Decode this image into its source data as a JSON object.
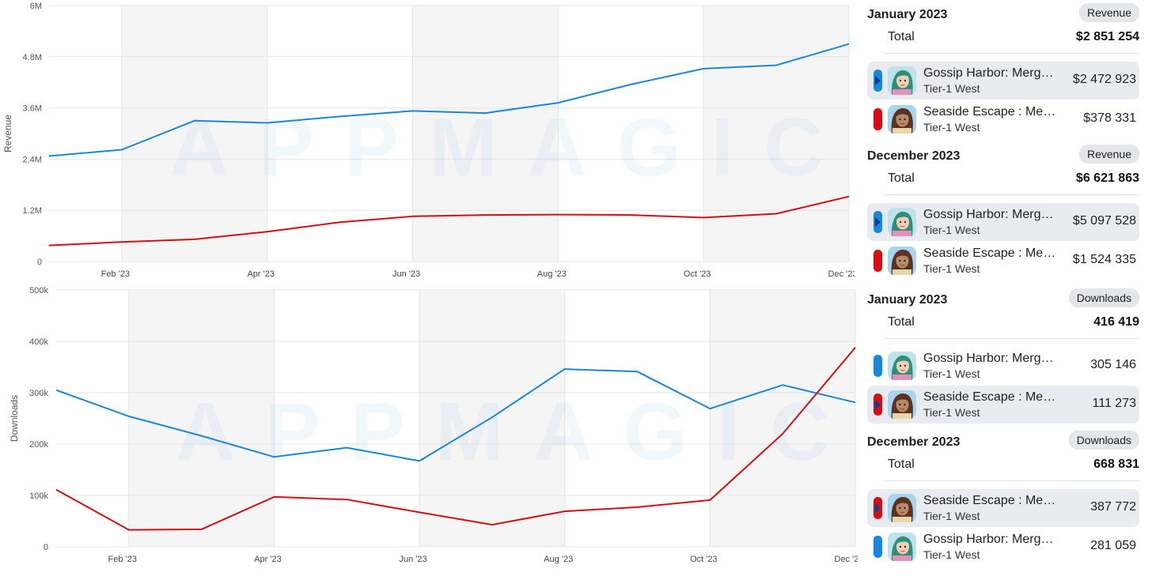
{
  "colors": {
    "gossip": "#1a86d9",
    "seaside": "#d40f14",
    "grid": "#e5e5e5",
    "shade": "#f5f5f5"
  },
  "watermark": "APPMAGIC",
  "chart_data": [
    {
      "type": "line",
      "ylabel": "Revenue",
      "yticks": [
        "0",
        "1.2M",
        "2.4M",
        "3.6M",
        "4.8M",
        "6M"
      ],
      "ylim": [
        0,
        6000000
      ],
      "xtick_labels": [
        "Feb '23",
        "Apr '23",
        "Jun '23",
        "Aug '23",
        "Oct '23",
        "Dec '23"
      ],
      "x": [
        "Jan '23",
        "Feb '23",
        "Mar '23",
        "Apr '23",
        "May '23",
        "Jun '23",
        "Jul '23",
        "Aug '23",
        "Sep '23",
        "Oct '23",
        "Nov '23",
        "Dec '23"
      ],
      "grid": true,
      "series": [
        {
          "name": "Gossip Harbor: Merg…",
          "color": "#1a86d9",
          "values": [
            2472923,
            2620000,
            3300000,
            3250000,
            3400000,
            3530000,
            3480000,
            3720000,
            4150000,
            4520000,
            4600000,
            5097528
          ]
        },
        {
          "name": "Seaside Escape : Mer…",
          "color": "#d40f14",
          "values": [
            378331,
            460000,
            520000,
            700000,
            920000,
            1060000,
            1090000,
            1100000,
            1090000,
            1030000,
            1120000,
            1524335
          ]
        }
      ]
    },
    {
      "type": "line",
      "ylabel": "Downloads",
      "yticks": [
        "0",
        "100k",
        "200k",
        "300k",
        "400k",
        "500k"
      ],
      "ylim": [
        0,
        500000
      ],
      "xtick_labels": [
        "Feb '23",
        "Apr '23",
        "Jun '23",
        "Aug '23",
        "Oct '23",
        "Dec '23"
      ],
      "x": [
        "Jan '23",
        "Feb '23",
        "Mar '23",
        "Apr '23",
        "May '23",
        "Jun '23",
        "Jul '23",
        "Aug '23",
        "Sep '23",
        "Oct '23",
        "Nov '23",
        "Dec '23"
      ],
      "grid": true,
      "series": [
        {
          "name": "Gossip Harbor: Merg…",
          "color": "#1a86d9",
          "values": [
            305146,
            254000,
            216000,
            175000,
            193000,
            167000,
            252000,
            346000,
            341000,
            269000,
            315000,
            281059
          ]
        },
        {
          "name": "Seaside Escape : Mer…",
          "color": "#d40f14",
          "values": [
            111273,
            33000,
            34000,
            97000,
            92000,
            67000,
            43000,
            69000,
            77000,
            91000,
            220000,
            387772
          ]
        }
      ]
    }
  ],
  "panels": [
    {
      "header": "January 2023",
      "metric": "Revenue",
      "total_label": "Total",
      "total": "$2 851 254",
      "rows": [
        {
          "name": "Gossip Harbor: Merge & Story",
          "region": "Tier-1 West",
          "value": "$2 472 923",
          "color": "#1a86d9",
          "icon": "gossip",
          "selected": true
        },
        {
          "name": "Seaside Escape : Merge & Story",
          "region": "Tier-1 West",
          "value": "$378 331",
          "color": "#d40f14",
          "icon": "seaside",
          "selected": false
        }
      ]
    },
    {
      "header": "December 2023",
      "metric": "Revenue",
      "total_label": "Total",
      "total": "$6 621 863",
      "rows": [
        {
          "name": "Gossip Harbor: Merge & Story",
          "region": "Tier-1 West",
          "value": "$5 097 528",
          "color": "#1a86d9",
          "icon": "gossip",
          "selected": true
        },
        {
          "name": "Seaside Escape : Merge & Story",
          "region": "Tier-1 West",
          "value": "$1 524 335",
          "color": "#d40f14",
          "icon": "seaside",
          "selected": false
        }
      ]
    },
    {
      "header": "January 2023",
      "metric": "Downloads",
      "total_label": "Total",
      "total": "416 419",
      "rows": [
        {
          "name": "Gossip Harbor: Merge & Story",
          "region": "Tier-1 West",
          "value": "305 146",
          "color": "#1a86d9",
          "icon": "gossip",
          "selected": false
        },
        {
          "name": "Seaside Escape : Merge & Story",
          "region": "Tier-1 West",
          "value": "111 273",
          "color": "#d40f14",
          "icon": "seaside",
          "selected": true
        }
      ]
    },
    {
      "header": "December 2023",
      "metric": "Downloads",
      "total_label": "Total",
      "total": "668 831",
      "rows": [
        {
          "name": "Seaside Escape : Merge & Story",
          "region": "Tier-1 West",
          "value": "387 772",
          "color": "#d40f14",
          "icon": "seaside",
          "selected": true
        },
        {
          "name": "Gossip Harbor: Merge & Story",
          "region": "Tier-1 West",
          "value": "281 059",
          "color": "#1a86d9",
          "icon": "gossip",
          "selected": false
        }
      ]
    }
  ]
}
